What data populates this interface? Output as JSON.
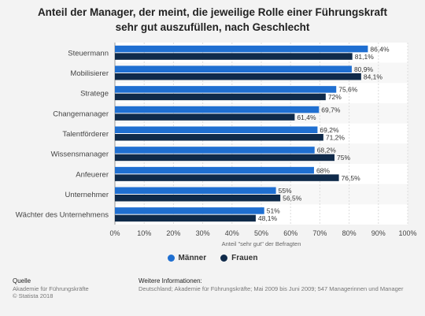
{
  "header": {
    "title_line1": "Anteil der Manager, der meint, die jeweilige Rolle einer Führungskraft",
    "title_line2": "sehr gut auszufüllen, nach Geschlecht"
  },
  "legend": [
    {
      "name": "Männer",
      "color": "#1f6fd1"
    },
    {
      "name": "Frauen",
      "color": "#0f2a4a"
    }
  ],
  "footer": {
    "source_heading": "Quelle",
    "source_line1": "Akademie für Führungskräfte",
    "source_line2": "© Statista 2018",
    "info_heading": "Weitere Informationen:",
    "info_line1": "Deutschland; Akademie für Führungskräfte; Mai 2009 bis Juni 2009; 547 Managerinnen und Manager"
  },
  "chart_data": {
    "type": "bar",
    "orientation": "horizontal",
    "categories": [
      "Steuermann",
      "Mobilisierer",
      "Stratege",
      "Changemanager",
      "Talentförderer",
      "Wissensmanager",
      "Anfeuerer",
      "Unternehmer",
      "Wächter des Unternehmens"
    ],
    "series": [
      {
        "name": "Männer",
        "values": [
          86.4,
          80.9,
          75.6,
          69.7,
          69.2,
          68.2,
          68,
          55,
          51
        ],
        "labels": [
          "86,4%",
          "80,9%",
          "75,6%",
          "69,7%",
          "69,2%",
          "68,2%",
          "68%",
          "55%",
          "51%"
        ],
        "color": "#1f6fd1"
      },
      {
        "name": "Frauen",
        "values": [
          81.1,
          84.1,
          72,
          61.4,
          71.2,
          75,
          76.5,
          56.5,
          48.1
        ],
        "labels": [
          "81,1%",
          "84,1%",
          "72%",
          "61,4%",
          "71,2%",
          "75%",
          "76,5%",
          "56,5%",
          "48,1%"
        ],
        "color": "#0f2a4a"
      }
    ],
    "xlabel": "Anteil \"sehr gut\" der Befragten",
    "xlim": [
      0,
      100
    ],
    "ticks": [
      "0%",
      "10%",
      "20%",
      "30%",
      "40%",
      "50%",
      "60%",
      "70%",
      "80%",
      "90%",
      "100%"
    ],
    "grid": true,
    "legend_position": "bottom"
  }
}
